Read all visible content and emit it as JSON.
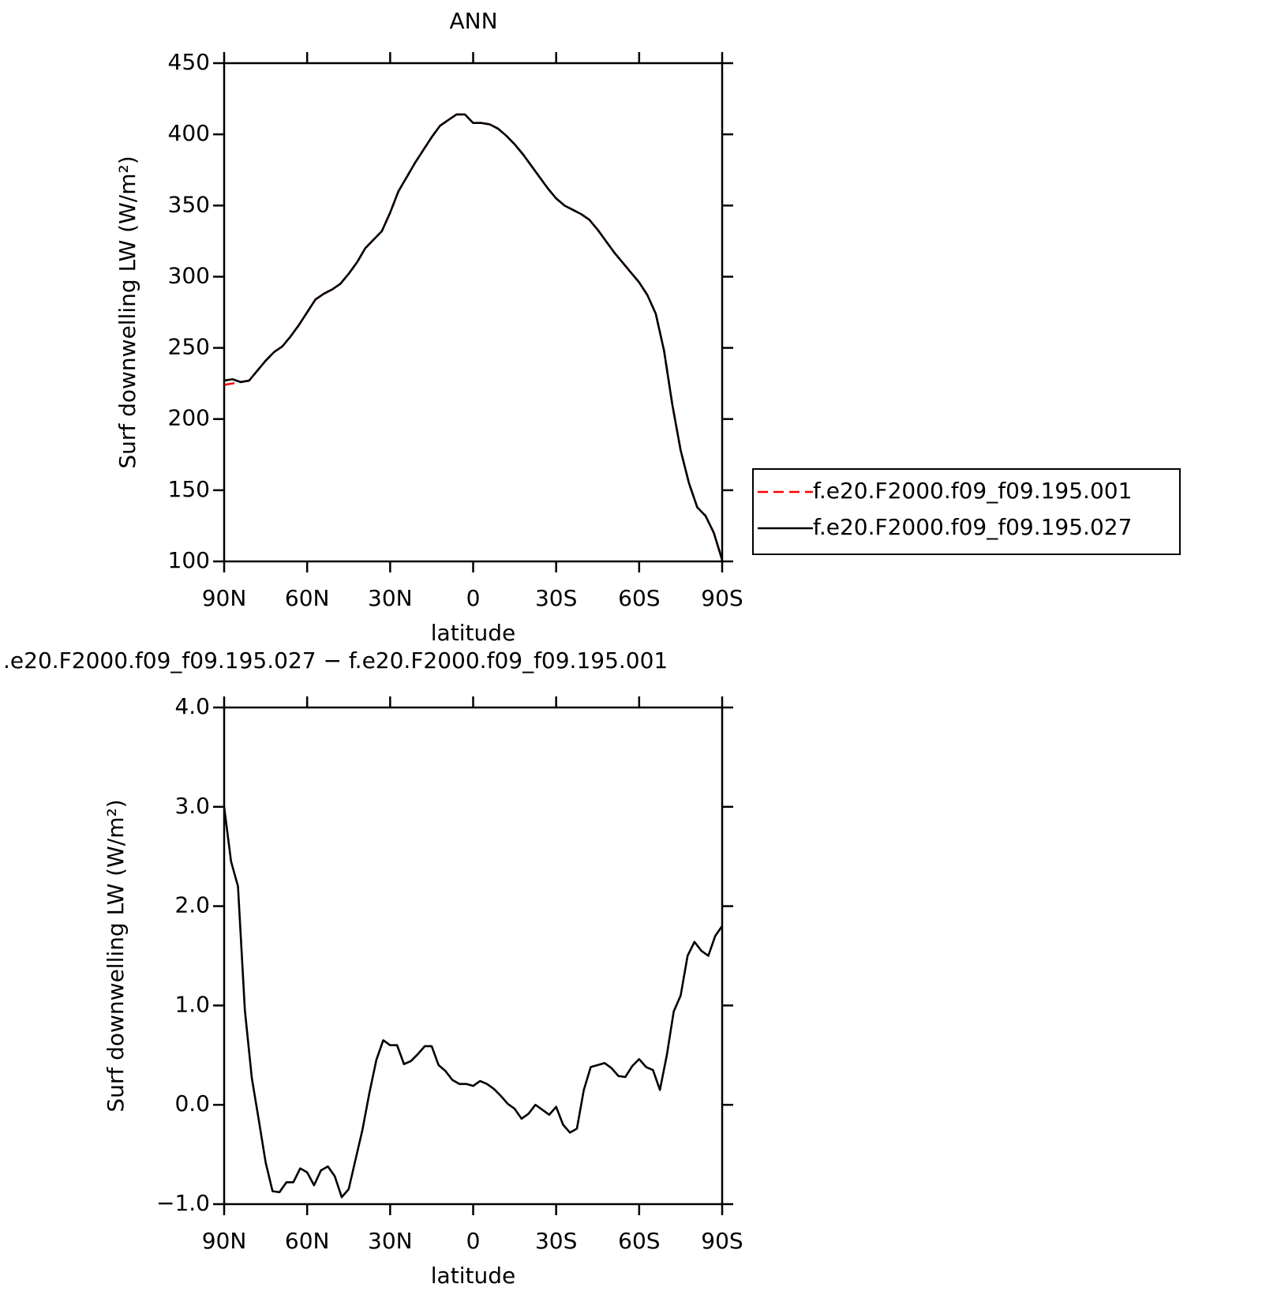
{
  "chart_data": [
    {
      "type": "line",
      "title": "ANN",
      "xlabel": "latitude",
      "ylabel": "Surf downwelling LW (W/m²)",
      "x": [
        90,
        87,
        84,
        81,
        78,
        75,
        72,
        69,
        66,
        63,
        60,
        57,
        54,
        51,
        48,
        45,
        42,
        39,
        36,
        33,
        30,
        27,
        24,
        21,
        18,
        15,
        12,
        9,
        6,
        3,
        0,
        -3,
        -6,
        -9,
        -12,
        -15,
        -18,
        -21,
        -24,
        -27,
        -30,
        -33,
        -36,
        -39,
        -42,
        -45,
        -48,
        -51,
        -54,
        -57,
        -60,
        -63,
        -66,
        -69,
        -72,
        -75,
        -78,
        -81,
        -84,
        -87,
        -90
      ],
      "series": [
        {
          "name": "f.e20.F2000.f09_f09.195.001",
          "color": "#ff0000",
          "line_style": "dashed",
          "values": [
            224,
            225,
            226,
            227,
            234,
            241,
            247,
            251,
            258,
            266,
            275,
            284,
            288,
            291,
            295,
            302,
            310,
            320,
            326,
            332,
            345,
            360,
            370,
            380,
            389,
            398,
            406,
            410,
            414,
            414,
            408,
            408,
            407,
            404,
            399,
            393,
            386,
            378,
            370,
            362,
            355,
            350,
            347,
            344,
            340,
            333,
            325,
            317,
            310,
            303,
            296,
            287,
            274,
            248,
            210,
            178,
            155,
            138,
            132,
            120,
            101
          ]
        },
        {
          "name": "f.e20.F2000.f09_f09.195.027",
          "color": "#000000",
          "line_style": "solid",
          "values": [
            227,
            228,
            226,
            227,
            234,
            241,
            247,
            251,
            258,
            266,
            275,
            284,
            288,
            291,
            295,
            302,
            310,
            320,
            326,
            332,
            345,
            360,
            370,
            380,
            389,
            398,
            406,
            410,
            414,
            414,
            408,
            408,
            407,
            404,
            399,
            393,
            386,
            378,
            370,
            362,
            355,
            350,
            347,
            344,
            340,
            333,
            325,
            317,
            310,
            303,
            296,
            287,
            274,
            248,
            210,
            178,
            155,
            138,
            132,
            120,
            101
          ]
        }
      ],
      "xlim": [
        90,
        -90
      ],
      "xticks": [
        {
          "value": 90,
          "label": "90N"
        },
        {
          "value": 60,
          "label": "60N"
        },
        {
          "value": 30,
          "label": "30N"
        },
        0,
        {
          "value": -30,
          "label": "30S"
        },
        {
          "value": -60,
          "label": "60S"
        },
        {
          "value": -90,
          "label": "90S"
        }
      ],
      "ylim": [
        100,
        450
      ],
      "yticks": [
        100,
        150,
        200,
        250,
        300,
        350,
        400,
        450
      ],
      "legend": "right"
    },
    {
      "type": "line",
      "title": ".e20.F2000.f09_f09.195.027 − f.e20.F2000.f09_f09.195.001",
      "xlabel": "latitude",
      "ylabel": "Surf downwelling LW (W/m²)",
      "x": [
        90,
        87.5,
        85,
        82.5,
        80,
        77.5,
        75,
        72.5,
        70,
        67.5,
        65,
        62.5,
        60,
        57.5,
        55,
        52.5,
        50,
        47.5,
        45,
        42.5,
        40,
        37.5,
        35,
        32.5,
        30,
        27.5,
        25,
        22.5,
        20,
        17.5,
        15,
        12.5,
        10,
        7.5,
        5,
        2.5,
        0,
        -2.5,
        -5,
        -7.5,
        -10,
        -12.5,
        -15,
        -17.5,
        -20,
        -22.5,
        -25,
        -27.5,
        -30,
        -32.5,
        -35,
        -37.5,
        -40,
        -42.5,
        -45,
        -47.5,
        -50,
        -52.5,
        -55,
        -57.5,
        -60,
        -62.5,
        -65,
        -67.5,
        -70,
        -72.5,
        -75,
        -77.5,
        -80,
        -82.5,
        -85,
        -87.5,
        -90
      ],
      "values": [
        3.0,
        2.45,
        2.2,
        0.95,
        0.27,
        -0.15,
        -0.58,
        -0.87,
        -0.88,
        -0.78,
        -0.78,
        -0.64,
        -0.68,
        -0.81,
        -0.66,
        -0.62,
        -0.72,
        -0.93,
        -0.85,
        -0.55,
        -0.25,
        0.12,
        0.45,
        0.65,
        0.6,
        0.6,
        0.41,
        0.44,
        0.51,
        0.59,
        0.59,
        0.4,
        0.34,
        0.25,
        0.21,
        0.21,
        0.19,
        0.24,
        0.21,
        0.16,
        0.09,
        0.01,
        -0.04,
        -0.14,
        -0.09,
        0.0,
        -0.05,
        -0.1,
        -0.02,
        -0.2,
        -0.28,
        -0.24,
        0.15,
        0.38,
        0.4,
        0.42,
        0.37,
        0.29,
        0.28,
        0.39,
        0.46,
        0.38,
        0.35,
        0.15,
        0.5,
        0.94,
        1.1,
        1.5,
        1.64,
        1.55,
        1.5,
        1.7,
        1.8
      ],
      "color": "#000000",
      "xlim": [
        90,
        -90
      ],
      "xticks": [
        {
          "value": 90,
          "label": "90N"
        },
        {
          "value": 60,
          "label": "60N"
        },
        {
          "value": 30,
          "label": "30N"
        },
        0,
        {
          "value": -30,
          "label": "30S"
        },
        {
          "value": -60,
          "label": "60S"
        },
        {
          "value": -90,
          "label": "90S"
        }
      ],
      "ylim": [
        -1,
        4
      ],
      "yticks": [
        {
          "value": -1,
          "label": "−1.0"
        },
        {
          "value": 0,
          "label": "0.0"
        },
        {
          "value": 1,
          "label": "1.0"
        },
        {
          "value": 2,
          "label": "2.0"
        },
        {
          "value": 3,
          "label": "3.0"
        },
        {
          "value": 4,
          "label": "4.0"
        }
      ]
    }
  ]
}
